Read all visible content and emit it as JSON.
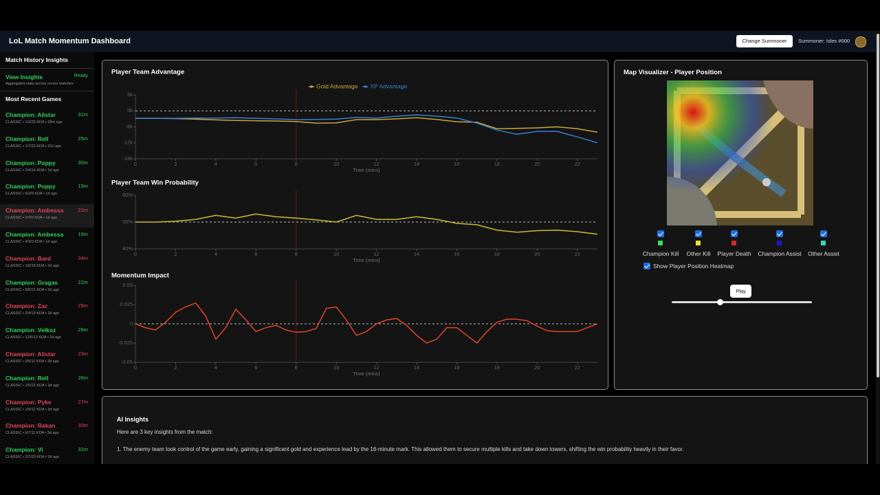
{
  "header": {
    "title": "LoL Match Momentum Dashboard",
    "button": "Change Summoner",
    "summoner": "Summoner: Isles #000"
  },
  "sidebar": {
    "section_title": "Match History Insights",
    "insights_link": "View Insights",
    "insights_status": "Ready",
    "insights_desc": "Aggregated stats across recent matches",
    "games_title": "Most Recent Games",
    "games": [
      {
        "name": "Champion: Alistar",
        "duration": "31m",
        "meta": "CLASSIC • 1/3/20 KDA • 28m ago",
        "color": "#35d05a"
      },
      {
        "name": "Champion: Rell",
        "duration": "25m",
        "meta": "CLASSIC • 1/7/20 KDA • 21h ago",
        "color": "#35d05a"
      },
      {
        "name": "Champion: Poppy",
        "duration": "30m",
        "meta": "CLASSIC • 2/4/14 KDA • 1d ago",
        "color": "#35d05a"
      },
      {
        "name": "Champion: Poppy",
        "duration": "19m",
        "meta": "CLASSIC • 5/3/9 KDA • 1d ago",
        "color": "#35d05a"
      },
      {
        "name": "Champion: Ambessa",
        "duration": "22m",
        "meta": "CLASSIC • 2/7/0 KDA • 1d ago",
        "color": "#e0455a"
      },
      {
        "name": "Champion: Ambessa",
        "duration": "16m",
        "meta": "CLASSIC • 4/3/0 KDA • 1d ago",
        "color": "#35d05a"
      },
      {
        "name": "Champion: Bard",
        "duration": "34m",
        "meta": "CLASSIC • 1/6/18 KDA • 2d ago",
        "color": "#e0455a"
      },
      {
        "name": "Champion: Gragas",
        "duration": "22m",
        "meta": "CLASSIC • 8/6/21 KDA • 2d ago",
        "color": "#35d05a"
      },
      {
        "name": "Champion: Zac",
        "duration": "29m",
        "meta": "CLASSIC • 2/4/19 KDA • 2d ago",
        "color": "#e0455a"
      },
      {
        "name": "Champion: Velkoz",
        "duration": "28m",
        "meta": "CLASSIC • 12/6/12 KDA • 2d ago",
        "color": "#35d05a"
      },
      {
        "name": "Champion: Alistar",
        "duration": "23m",
        "meta": "CLASSIC • 0/5/11 KDA • 3d ago",
        "color": "#e0455a"
      },
      {
        "name": "Champion: Rell",
        "duration": "26m",
        "meta": "CLASSIC • 1/5/22 KDA • 3d ago",
        "color": "#35d05a"
      },
      {
        "name": "Champion: Pyke",
        "duration": "27m",
        "meta": "CLASSIC • 1/9/12 KDA • 3d ago",
        "color": "#e0455a"
      },
      {
        "name": "Champion: Rakan",
        "duration": "30m",
        "meta": "CLASSIC • 0/7/11 KDA • 3d ago",
        "color": "#e0455a"
      },
      {
        "name": "Champion: Vi",
        "duration": "32m",
        "meta": "CLASSIC • 2/7/20 KDA • 3d ago",
        "color": "#35d05a"
      }
    ]
  },
  "chart_data": [
    {
      "type": "line",
      "title": "Player Team Advantage",
      "xlabel": "Time (mins)",
      "legend": "top",
      "x": [
        0,
        1,
        2,
        3,
        4,
        5,
        6,
        7,
        8,
        9,
        10,
        11,
        12,
        13,
        14,
        15,
        16,
        17,
        18,
        19,
        20,
        21,
        22,
        23
      ],
      "xlim": [
        0,
        23
      ],
      "xticks": [
        0,
        2,
        4,
        6,
        8,
        10,
        12,
        14,
        16,
        18,
        20,
        22
      ],
      "ylim": [
        -18000,
        6000
      ],
      "yticks": [
        {
          "value": -18000,
          "label": "-18k"
        },
        {
          "value": -12000,
          "label": "-12k"
        },
        {
          "value": -6000,
          "label": "-6k"
        },
        {
          "value": 0,
          "label": "0k"
        },
        {
          "value": 6000,
          "label": "6k"
        }
      ],
      "hline": 0,
      "marker_x": 8,
      "series": [
        {
          "name": "Gold Advantage",
          "color": "#c9a93a",
          "values": [
            -2800,
            -2800,
            -2900,
            -3100,
            -3400,
            -3600,
            -3700,
            -3800,
            -4000,
            -4600,
            -4500,
            -3300,
            -3300,
            -3000,
            -2600,
            -3200,
            -4100,
            -4300,
            -6700,
            -6600,
            -6400,
            -6000,
            -6700,
            -8000
          ]
        },
        {
          "name": "XP Advantage",
          "color": "#3a7fd5",
          "values": [
            -2800,
            -2800,
            -2800,
            -2700,
            -2700,
            -2600,
            -2800,
            -3000,
            -3300,
            -3200,
            -3100,
            -2500,
            -2700,
            -2000,
            -1500,
            -2000,
            -2700,
            -4600,
            -7200,
            -8800,
            -7700,
            -7700,
            -9800,
            -12000
          ]
        }
      ]
    },
    {
      "type": "line",
      "title": "Player Team Win Probability",
      "xlabel": "Time (mins)",
      "x": [
        0,
        1,
        2,
        3,
        4,
        5,
        6,
        7,
        8,
        9,
        10,
        11,
        12,
        13,
        14,
        15,
        16,
        17,
        18,
        19,
        20,
        21,
        22,
        23
      ],
      "xlim": [
        0,
        23
      ],
      "xticks": [
        0,
        2,
        4,
        6,
        8,
        10,
        12,
        14,
        16,
        18,
        20,
        22
      ],
      "ylim": [
        40,
        60
      ],
      "yticks": [
        {
          "value": 40,
          "label": "40%"
        },
        {
          "value": 50,
          "label": "50%"
        },
        {
          "value": 60,
          "label": "60%"
        }
      ],
      "hline": 50,
      "marker_x": 8,
      "series": [
        {
          "color": "#cdbd36",
          "values": [
            50,
            50,
            50.3,
            51,
            52.5,
            51.5,
            53,
            52,
            51.5,
            50.8,
            50,
            52.5,
            51,
            51,
            52,
            51,
            49.5,
            49,
            47,
            46.2,
            46.8,
            47,
            46.4,
            45.5
          ]
        }
      ]
    },
    {
      "type": "line",
      "title": "Momentum Impact",
      "xlabel": "Time (mins)",
      "x": [
        0,
        0.5,
        1,
        1.5,
        2,
        2.5,
        3,
        3.5,
        4,
        4.5,
        5,
        5.5,
        6,
        6.5,
        7,
        7.5,
        8,
        8.5,
        9,
        9.5,
        10,
        10.5,
        11,
        11.5,
        12,
        12.5,
        13,
        13.5,
        14,
        14.5,
        15,
        15.5,
        16,
        16.5,
        17,
        17.5,
        18,
        18.5,
        19,
        19.5,
        20,
        20.5,
        21,
        21.5,
        22,
        22.5,
        23
      ],
      "xlim": [
        0,
        23
      ],
      "xticks": [
        0,
        2,
        4,
        6,
        8,
        10,
        12,
        14,
        16,
        18,
        20,
        22
      ],
      "ylim": [
        -0.05,
        0.05
      ],
      "yticks": [
        -0.05,
        -0.025,
        0,
        0.025,
        0.05
      ],
      "hline": 0,
      "marker_x": 8,
      "series": [
        {
          "color": "#e0452a",
          "values": [
            0,
            -0.005,
            -0.008,
            0.002,
            0.015,
            0.022,
            0.027,
            0.01,
            -0.02,
            -0.005,
            0.019,
            0.005,
            -0.01,
            -0.005,
            -0.002,
            -0.008,
            -0.011,
            -0.01,
            -0.006,
            0.02,
            0.022,
            0.005,
            -0.015,
            -0.01,
            0,
            0.005,
            0.007,
            -0.002,
            -0.015,
            -0.025,
            -0.02,
            -0.005,
            -0.005,
            -0.015,
            -0.025,
            -0.01,
            0.002,
            0.006,
            0.006,
            0.004,
            -0.003,
            -0.009,
            -0.01,
            -0.01,
            -0.01,
            -0.005,
            0
          ]
        }
      ]
    }
  ],
  "map": {
    "title": "Map Visualizer - Player Position",
    "legend": [
      {
        "label": "Champion Kill",
        "color": "#3ddc5a"
      },
      {
        "label": "Other Kill",
        "color": "#e8e23a"
      },
      {
        "label": "Player Death",
        "color": "#d42a2a"
      },
      {
        "label": "Champion Assist",
        "color": "#1a1acc"
      },
      {
        "label": "Other Assist",
        "color": "#3ad6c0"
      }
    ],
    "heatmap_toggle": "Show Player Position Heatmap",
    "play": "Play"
  },
  "insights": {
    "title": "AI Insights",
    "intro": "Here are 3 key insights from the match:",
    "points": [
      "1. The enemy team took control of the game early, gaining a significant gold and experience lead by the 16-minute mark. This allowed them to secure multiple kills and take down towers, shifting the win probability heavily in their favor."
    ]
  }
}
